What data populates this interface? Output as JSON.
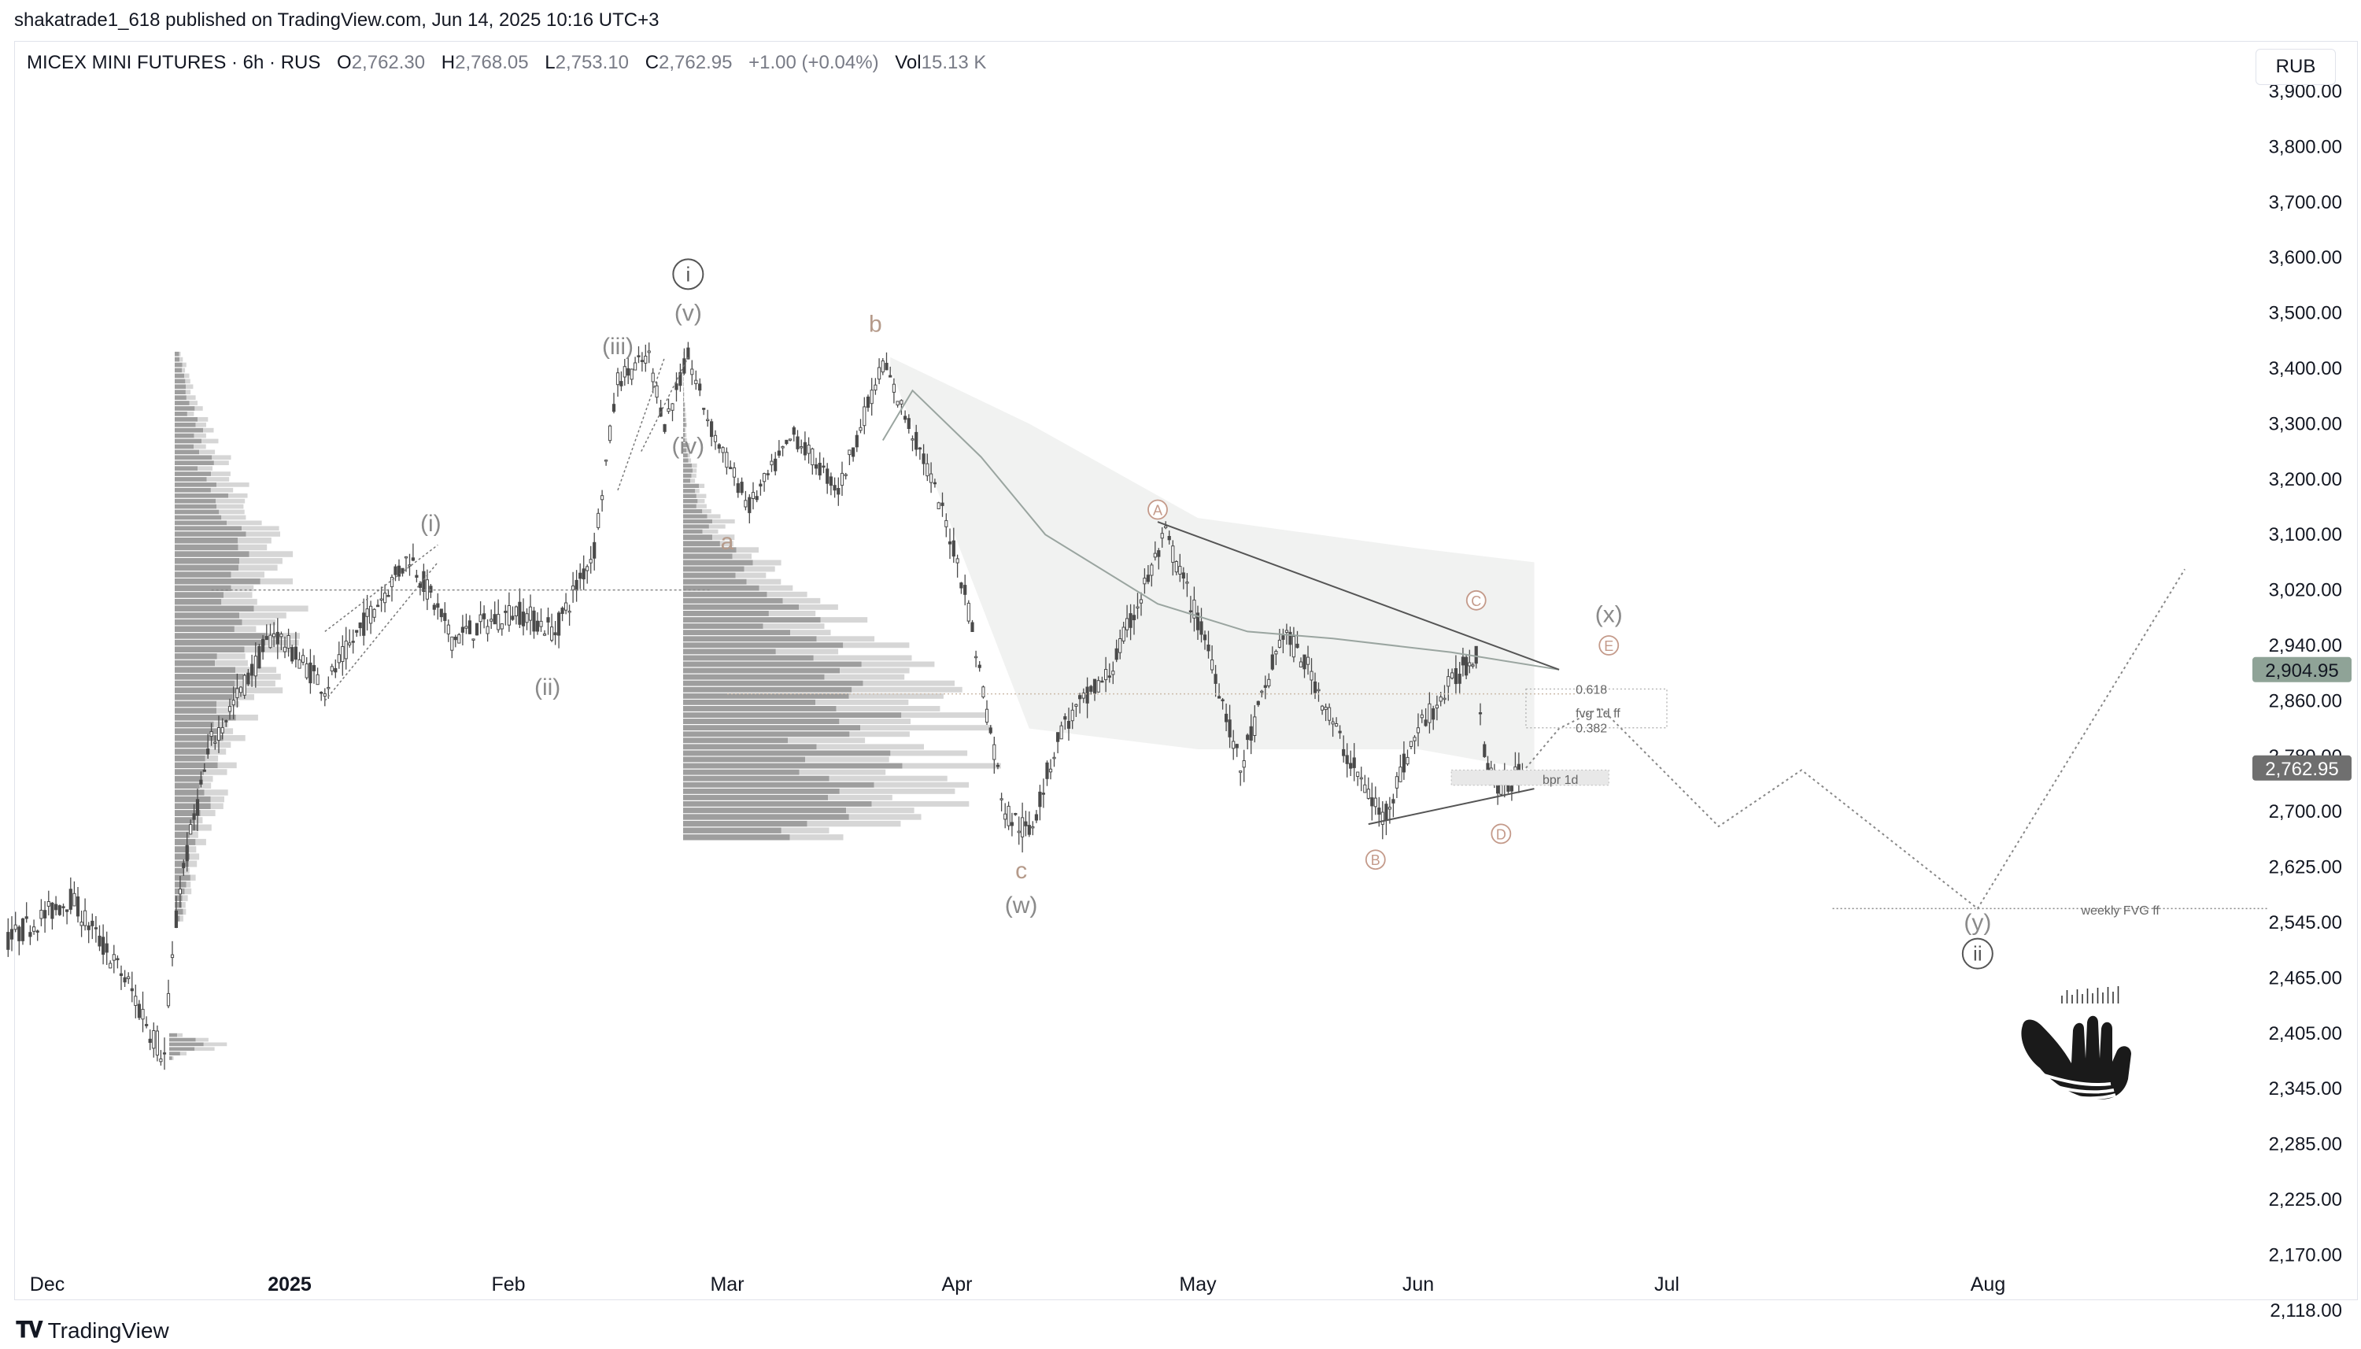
{
  "publisher_line": "shakatrade1_618 published on TradingView.com, Jun 14, 2025 10:16 UTC+3",
  "legend": {
    "symbol": "MICEX MINI FUTURES · 6h · RUS",
    "o_label": "O",
    "o_value": "2,762.30",
    "h_label": "H",
    "h_value": "2,768.05",
    "l_label": "L",
    "l_value": "2,753.10",
    "c_label": "C",
    "c_value": "2,762.95",
    "change": "+1.00 (+0.04%)",
    "vol_label": "Vol",
    "vol_value": "15.13 K"
  },
  "currency_button": "RUB",
  "footer_brand": "TradingView",
  "colors": {
    "candle": "#4a4a4a",
    "wave_label": "#8a8a8a",
    "abc_label": "#b59a8a",
    "triangle_label": "#c49a8a",
    "profile_dark": "#9e9e9e",
    "profile_light": "#d6d6d6",
    "channel_fill": "#eef0ef",
    "ma_line": "#9aa5a0",
    "badge_green": "#8fa397",
    "badge_dark": "#6f6f6f"
  },
  "chart_data": {
    "type": "candlestick",
    "symbol": "MICEX MINI FUTURES",
    "timeframe": "6h",
    "y_axis_ticks": [
      "3,900.00",
      "3,800.00",
      "3,700.00",
      "3,600.00",
      "3,500.00",
      "3,400.00",
      "3,300.00",
      "3,200.00",
      "3,100.00",
      "3,020.00",
      "2,940.00",
      "2,860.00",
      "2,780.00",
      "2,700.00",
      "2,625.00",
      "2,545.00",
      "2,465.00",
      "2,405.00",
      "2,345.00",
      "2,285.00",
      "2,225.00",
      "2,170.00",
      "2,118.00"
    ],
    "x_axis_ticks": [
      "Dec",
      "2025",
      "Feb",
      "Mar",
      "Apr",
      "May",
      "Jun",
      "Jul",
      "Aug"
    ],
    "price_badges": [
      {
        "value": "2,904.95",
        "kind": "green"
      },
      {
        "value": "2,762.95",
        "kind": "dark"
      }
    ],
    "path_points": [
      {
        "date": "2024-11-26",
        "price": 2520
      },
      {
        "date": "2024-12-04",
        "price": 2580
      },
      {
        "date": "2024-12-10",
        "price": 2480
      },
      {
        "date": "2024-12-16",
        "price": 2380
      },
      {
        "date": "2024-12-18",
        "price": 2600
      },
      {
        "date": "2024-12-22",
        "price": 2800
      },
      {
        "date": "2024-12-30",
        "price": 2960
      },
      {
        "date": "2025-01-06",
        "price": 2880
      },
      {
        "date": "2025-01-12",
        "price": 2980
      },
      {
        "date": "2025-01-18",
        "price": 3070
      },
      {
        "date": "2025-01-24",
        "price": 2950
      },
      {
        "date": "2025-02-02",
        "price": 2990
      },
      {
        "date": "2025-02-07",
        "price": 2960
      },
      {
        "date": "2025-02-12",
        "price": 3080
      },
      {
        "date": "2025-02-15",
        "price": 3380
      },
      {
        "date": "2025-02-19",
        "price": 3420
      },
      {
        "date": "2025-02-21",
        "price": 3300
      },
      {
        "date": "2025-02-24",
        "price": 3420
      },
      {
        "date": "2025-02-27",
        "price": 3290
      },
      {
        "date": "2025-03-04",
        "price": 3150
      },
      {
        "date": "2025-03-10",
        "price": 3280
      },
      {
        "date": "2025-03-16",
        "price": 3180
      },
      {
        "date": "2025-03-22",
        "price": 3410
      },
      {
        "date": "2025-03-28",
        "price": 3220
      },
      {
        "date": "2025-04-02",
        "price": 3020
      },
      {
        "date": "2025-04-07",
        "price": 2700
      },
      {
        "date": "2025-04-10",
        "price": 2670
      },
      {
        "date": "2025-04-14",
        "price": 2820
      },
      {
        "date": "2025-04-20",
        "price": 2900
      },
      {
        "date": "2025-04-27",
        "price": 3100
      },
      {
        "date": "2025-05-03",
        "price": 2920
      },
      {
        "date": "2025-05-07",
        "price": 2760
      },
      {
        "date": "2025-05-13",
        "price": 2960
      },
      {
        "date": "2025-05-17",
        "price": 2900
      },
      {
        "date": "2025-05-22",
        "price": 2780
      },
      {
        "date": "2025-05-27",
        "price": 2690
      },
      {
        "date": "2025-06-01",
        "price": 2820
      },
      {
        "date": "2025-06-06",
        "price": 2900
      },
      {
        "date": "2025-06-08",
        "price": 2930
      },
      {
        "date": "2025-06-09",
        "price": 2780
      },
      {
        "date": "2025-06-11",
        "price": 2730
      },
      {
        "date": "2025-06-14",
        "price": 2763
      }
    ],
    "projection_points": [
      {
        "date": "2025-06-14",
        "price": 2763
      },
      {
        "date": "2025-06-18",
        "price": 2820
      },
      {
        "date": "2025-06-23",
        "price": 2850
      },
      {
        "date": "2025-07-06",
        "price": 2680
      },
      {
        "date": "2025-07-14",
        "price": 2760
      },
      {
        "date": "2025-07-31",
        "price": 2565
      },
      {
        "date": "2025-08-20",
        "price": 3050
      }
    ],
    "wave_labels": [
      {
        "text": "ⓘ",
        "date": "2025-02-24",
        "price": 3570,
        "style": "circle"
      },
      {
        "text": "(v)",
        "date": "2025-02-24",
        "price": 3500,
        "style": "paren"
      },
      {
        "text": "(iii)",
        "date": "2025-02-15",
        "price": 3440,
        "style": "paren"
      },
      {
        "text": "(iv)",
        "date": "2025-02-24",
        "price": 3260,
        "style": "paren"
      },
      {
        "text": "(i)",
        "date": "2025-01-21",
        "price": 3120,
        "style": "paren"
      },
      {
        "text": "(ii)",
        "date": "2025-02-06",
        "price": 2880,
        "style": "paren"
      },
      {
        "text": "b",
        "date": "2025-03-21",
        "price": 3480,
        "style": "abc"
      },
      {
        "text": "a",
        "date": "2025-03-01",
        "price": 3090,
        "style": "abc"
      },
      {
        "text": "c",
        "date": "2025-04-09",
        "price": 2620,
        "style": "abc"
      },
      {
        "text": "(w)",
        "date": "2025-04-09",
        "price": 2570,
        "style": "paren"
      },
      {
        "text": "A",
        "date": "2025-04-26",
        "price": 3145,
        "style": "tri"
      },
      {
        "text": "B",
        "date": "2025-05-26",
        "price": 2635,
        "style": "tri"
      },
      {
        "text": "C",
        "date": "2025-06-08",
        "price": 3005,
        "style": "tri"
      },
      {
        "text": "D",
        "date": "2025-06-11",
        "price": 2670,
        "style": "tri"
      },
      {
        "text": "(x)",
        "date": "2025-06-24",
        "price": 2985,
        "style": "paren"
      },
      {
        "text": "E",
        "date": "2025-06-24",
        "price": 2940,
        "style": "tri"
      },
      {
        "text": "(y)",
        "date": "2025-07-31",
        "price": 2545,
        "style": "paren"
      },
      {
        "text": "ⓘⓘ",
        "date": "2025-07-31",
        "price": 2500,
        "style": "circle"
      }
    ],
    "annotations": [
      {
        "text": "0.618",
        "date": "2025-06-20",
        "price": 2877
      },
      {
        "text": "fvg 1d ff",
        "date": "2025-06-20",
        "price": 2843
      },
      {
        "text": "0.382",
        "date": "2025-06-20",
        "price": 2821
      },
      {
        "text": "bpr 1d",
        "date": "2025-06-16",
        "price": 2747
      },
      {
        "text": "weekly FVG ff",
        "date": "2025-08-10",
        "price": 2563
      }
    ],
    "triangle_lines": [
      [
        {
          "date": "2025-04-26",
          "price": 3123
        },
        {
          "date": "2025-06-18",
          "price": 2905
        }
      ],
      [
        {
          "date": "2025-05-25",
          "price": 2683
        },
        {
          "date": "2025-06-15",
          "price": 2733
        }
      ]
    ]
  }
}
